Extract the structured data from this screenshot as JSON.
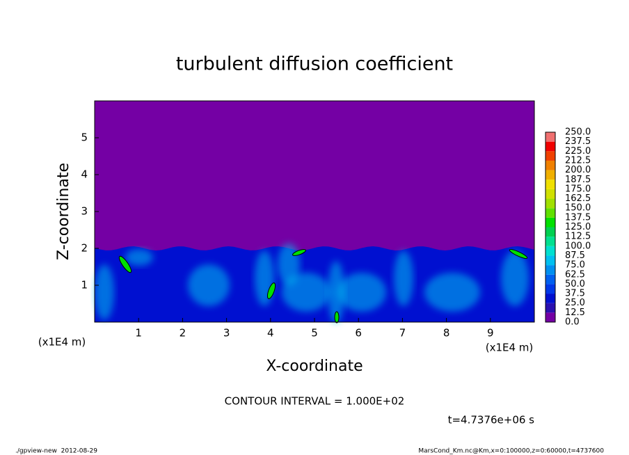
{
  "chart_data": {
    "type": "contour",
    "title": "turbulent diffusion coefficient",
    "x_label": "X-coordinate",
    "y_label": "Z-coordinate",
    "y_unit": "(x1E4 m)",
    "x_unit": "(x1E4 m)",
    "xlim": [
      0,
      10
    ],
    "ylim": [
      0,
      6
    ],
    "xticks": [
      1,
      2,
      3,
      4,
      5,
      6,
      7,
      8,
      9
    ],
    "yticks": [
      1,
      2,
      3,
      4,
      5
    ],
    "background_color": "#7400a4",
    "colorbar": {
      "levels": [
        {
          "value": 0,
          "label": "0.0"
        },
        12.5,
        {
          "value": 25,
          "label": "25.0"
        },
        37.5,
        {
          "value": 50,
          "label": "50.0"
        },
        62.5,
        {
          "value": 75,
          "label": "75.0"
        },
        87.5,
        {
          "value": 100,
          "label": "100.0"
        },
        112.5,
        {
          "value": 125,
          "label": "125.0"
        },
        137.5,
        {
          "value": 150,
          "label": "150.0"
        },
        162.5,
        {
          "value": 175,
          "label": "175.0"
        },
        187.5,
        {
          "value": 200,
          "label": "200.0"
        },
        212.5,
        {
          "value": 225,
          "label": "225.0"
        },
        237.5,
        {
          "value": 250,
          "label": "250.0"
        }
      ],
      "colors": [
        "#7400a4",
        "#2a10b0",
        "#0010d0",
        "#0038e8",
        "#0060f0",
        "#0090f0",
        "#00c0f0",
        "#00e0d0",
        "#00e090",
        "#00d050",
        "#00e000",
        "#60e000",
        "#a0e000",
        "#d0e000",
        "#f0e000",
        "#f0b000",
        "#f08000",
        "#f04000",
        "#f00000",
        "#f07070"
      ]
    },
    "contour_interval_label": "CONTOUR INTERVAL = 1.000E+02",
    "time_label": "t=4.7376e+06 s"
  },
  "footer": {
    "left": "./gpview-new  2012-08-29",
    "right": "MarsCond_Km.nc@Km,x=0:100000,z=0:60000,t=4737600"
  }
}
